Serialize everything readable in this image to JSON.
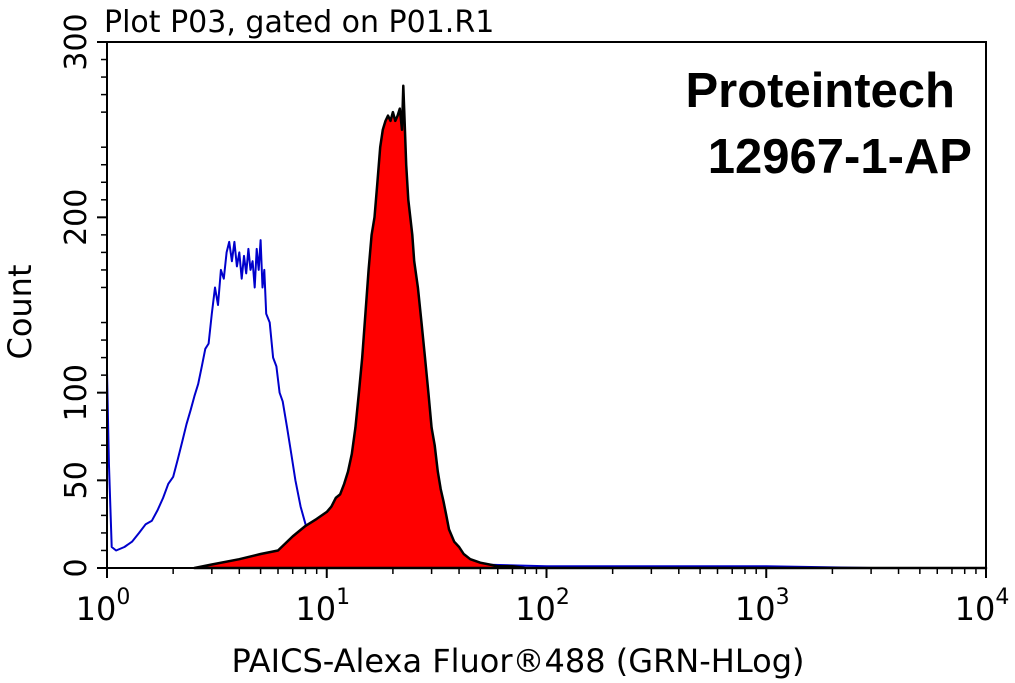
{
  "chart_data": {
    "type": "area",
    "title": "Plot P03, gated on P01.R1",
    "xlabel": "PAICS-Alexa Fluor®488 (GRN-HLog)",
    "ylabel": "Count",
    "x_scale": "log",
    "xlim": [
      1,
      10000
    ],
    "ylim": [
      0,
      300
    ],
    "x_ticks": [
      {
        "base": "10",
        "exp": "0"
      },
      {
        "base": "10",
        "exp": "1"
      },
      {
        "base": "10",
        "exp": "2"
      },
      {
        "base": "10",
        "exp": "3"
      },
      {
        "base": "10",
        "exp": "4"
      }
    ],
    "y_ticks": [
      0,
      50,
      100,
      200,
      300
    ],
    "annotation_lines": [
      "Proteintech",
      "12967-1-AP"
    ],
    "series": [
      {
        "style": "outline",
        "color": "#0000cc",
        "x": [
          1.0,
          1.02,
          1.05,
          1.1,
          1.2,
          1.3,
          1.4,
          1.5,
          1.6,
          1.7,
          1.8,
          1.9,
          2.0,
          2.1,
          2.2,
          2.3,
          2.4,
          2.5,
          2.6,
          2.7,
          2.8,
          2.9,
          3.0,
          3.1,
          3.2,
          3.3,
          3.4,
          3.5,
          3.6,
          3.7,
          3.8,
          3.9,
          4.0,
          4.1,
          4.2,
          4.3,
          4.4,
          4.5,
          4.6,
          4.7,
          4.8,
          4.9,
          5.0,
          5.1,
          5.2,
          5.3,
          5.5,
          5.7,
          5.9,
          6.1,
          6.3,
          6.6,
          6.9,
          7.2,
          7.6,
          8.0,
          9.0,
          10.5,
          13,
          20,
          50,
          100,
          300,
          1000,
          3000,
          10000
        ],
        "y": [
          112,
          60,
          12,
          10,
          12,
          15,
          20,
          25,
          27,
          33,
          40,
          48,
          52,
          62,
          72,
          82,
          90,
          98,
          105,
          115,
          125,
          128,
          145,
          160,
          150,
          170,
          165,
          180,
          186,
          175,
          186,
          172,
          180,
          165,
          178,
          168,
          182,
          170,
          175,
          160,
          182,
          170,
          187,
          160,
          170,
          145,
          140,
          120,
          115,
          100,
          95,
          80,
          65,
          50,
          35,
          25,
          15,
          8,
          5,
          3,
          2,
          1,
          1,
          1,
          0,
          0
        ]
      },
      {
        "style": "filled",
        "color": "#ff0000",
        "x": [
          2.5,
          3.0,
          4.0,
          5.0,
          6.0,
          7.0,
          8.0,
          9.0,
          10.0,
          10.5,
          11.0,
          11.5,
          12.0,
          12.5,
          13.0,
          13.5,
          14.0,
          14.5,
          15.0,
          15.5,
          16.0,
          16.5,
          17.0,
          17.5,
          18.0,
          18.5,
          19.0,
          19.5,
          20.0,
          20.5,
          21.0,
          21.5,
          22.0,
          22.3,
          22.6,
          23.0,
          23.5,
          24.0,
          24.5,
          25.0,
          26.0,
          27.0,
          28.0,
          29.0,
          30.0,
          31.0,
          32.0,
          33.0,
          34.0,
          35.0,
          36.0,
          38.0,
          40.0,
          42.0,
          45.0,
          50.0,
          55.0,
          60.0,
          70.0,
          80.0,
          100.0,
          200.0,
          1000.0,
          10000.0
        ],
        "y": [
          0,
          2,
          5,
          8,
          10,
          18,
          24,
          28,
          32,
          35,
          40,
          42,
          48,
          55,
          65,
          80,
          100,
          120,
          145,
          170,
          190,
          200,
          220,
          240,
          250,
          255,
          258,
          255,
          260,
          255,
          258,
          262,
          250,
          275,
          255,
          230,
          210,
          200,
          190,
          175,
          160,
          140,
          120,
          100,
          80,
          70,
          55,
          45,
          38,
          30,
          22,
          15,
          12,
          8,
          5,
          3,
          2,
          1,
          1,
          0,
          0,
          0,
          0,
          0
        ]
      }
    ]
  }
}
